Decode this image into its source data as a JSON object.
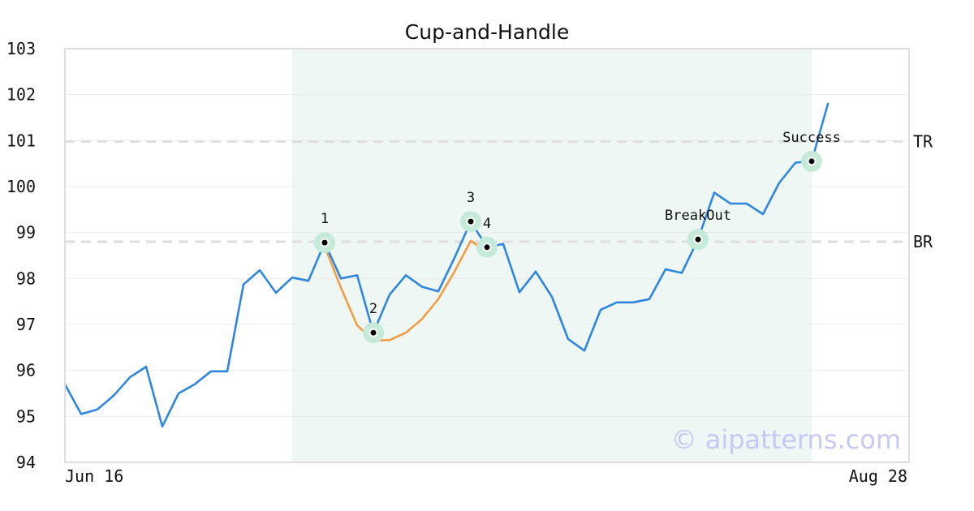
{
  "chart_data": {
    "type": "line",
    "title": "Cup-and-Handle",
    "xlabel": "",
    "ylabel": "",
    "ylim": [
      94,
      103
    ],
    "y_ticks": [
      94,
      95,
      96,
      97,
      98,
      99,
      100,
      101,
      102,
      103
    ],
    "x_tick_labels": [
      "Jun 16",
      "Aug 28"
    ],
    "grid": true,
    "legend": "none",
    "series": [
      {
        "values": [
          95.7,
          95.05,
          95.15,
          95.45,
          95.85,
          96.08,
          94.78,
          95.5,
          95.7,
          95.98,
          95.98,
          97.87,
          98.18,
          97.69,
          98.02,
          97.95,
          98.78,
          98.0,
          98.07,
          96.82,
          97.65,
          98.07,
          97.82,
          97.72,
          98.45,
          99.24,
          98.68,
          98.75,
          97.7,
          98.15,
          97.6,
          96.68,
          96.43,
          97.32,
          97.48,
          97.48,
          97.55,
          98.2,
          98.12,
          98.85,
          99.87,
          99.63,
          99.63,
          99.4,
          100.08,
          100.52,
          100.55,
          101.8
        ],
        "color": "#2e86de"
      },
      {
        "x": [
          16,
          17,
          18,
          19,
          20,
          21,
          22,
          23,
          24,
          25,
          26
        ],
        "values": [
          98.7,
          97.8,
          96.98,
          96.65,
          96.66,
          96.82,
          97.12,
          97.55,
          98.15,
          98.82,
          98.58
        ],
        "color": "#f39c45"
      }
    ],
    "shaded_region": {
      "x_start": 14,
      "x_end": 46,
      "color": "#eef7f3"
    },
    "reference_lines": [
      {
        "label": "TR",
        "value": 100.98,
        "color": "#dddddd"
      },
      {
        "label": "BR",
        "value": 98.8,
        "color": "#dddddd"
      }
    ],
    "markers": [
      {
        "label": "1",
        "x": 16,
        "y": 98.78,
        "label_pos": "above"
      },
      {
        "label": "2",
        "x": 19,
        "y": 96.82,
        "label_pos": "above"
      },
      {
        "label": "3",
        "x": 25,
        "y": 99.24,
        "label_pos": "above"
      },
      {
        "label": "4",
        "x": 26,
        "y": 98.68,
        "label_pos": "above"
      },
      {
        "label": "BreakOut",
        "x": 39,
        "y": 98.85,
        "label_pos": "above"
      },
      {
        "label": "Success",
        "x": 46,
        "y": 100.55,
        "label_pos": "above"
      }
    ],
    "marker_halo_color": "#c5ead9",
    "watermark": "© aipatterns.com",
    "watermark_color": "#c8c8f4"
  }
}
